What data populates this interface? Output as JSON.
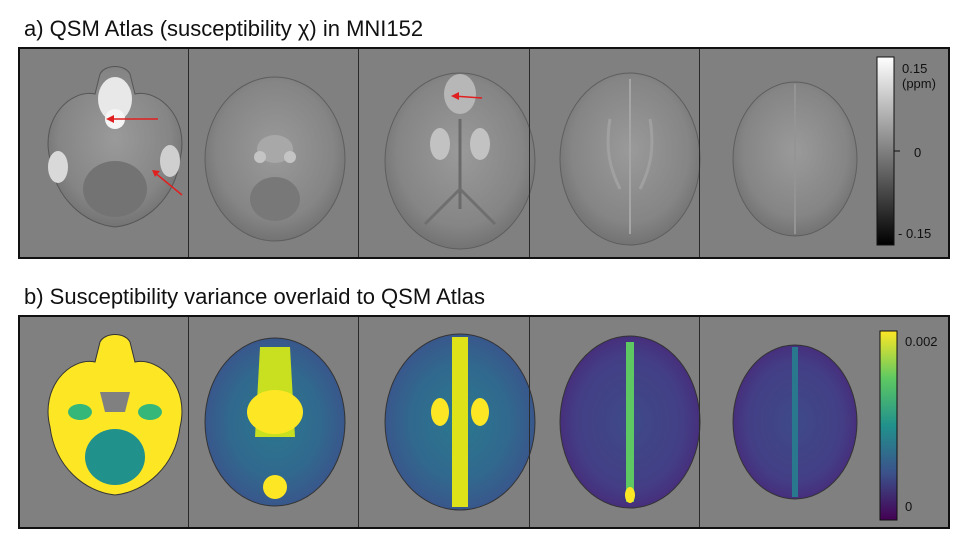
{
  "panel_a": {
    "title": "a) QSM Atlas (susceptibility χ) in MNI152",
    "colorbar": {
      "top_label": "0.15\n(ppm)",
      "mid_label": "0",
      "bottom_label": "- 0.15",
      "top_color": "#ffffff",
      "bottom_color": "#000000"
    },
    "annotation_color": "#e02020"
  },
  "panel_b": {
    "title": "b) Susceptibility variance overlaid to QSM Atlas",
    "colorbar": {
      "top_label": "0.002",
      "bottom_label": "0",
      "colormap": "viridis",
      "top_color": "#fde725",
      "bottom_color": "#440154"
    }
  },
  "background_color": "#808080"
}
